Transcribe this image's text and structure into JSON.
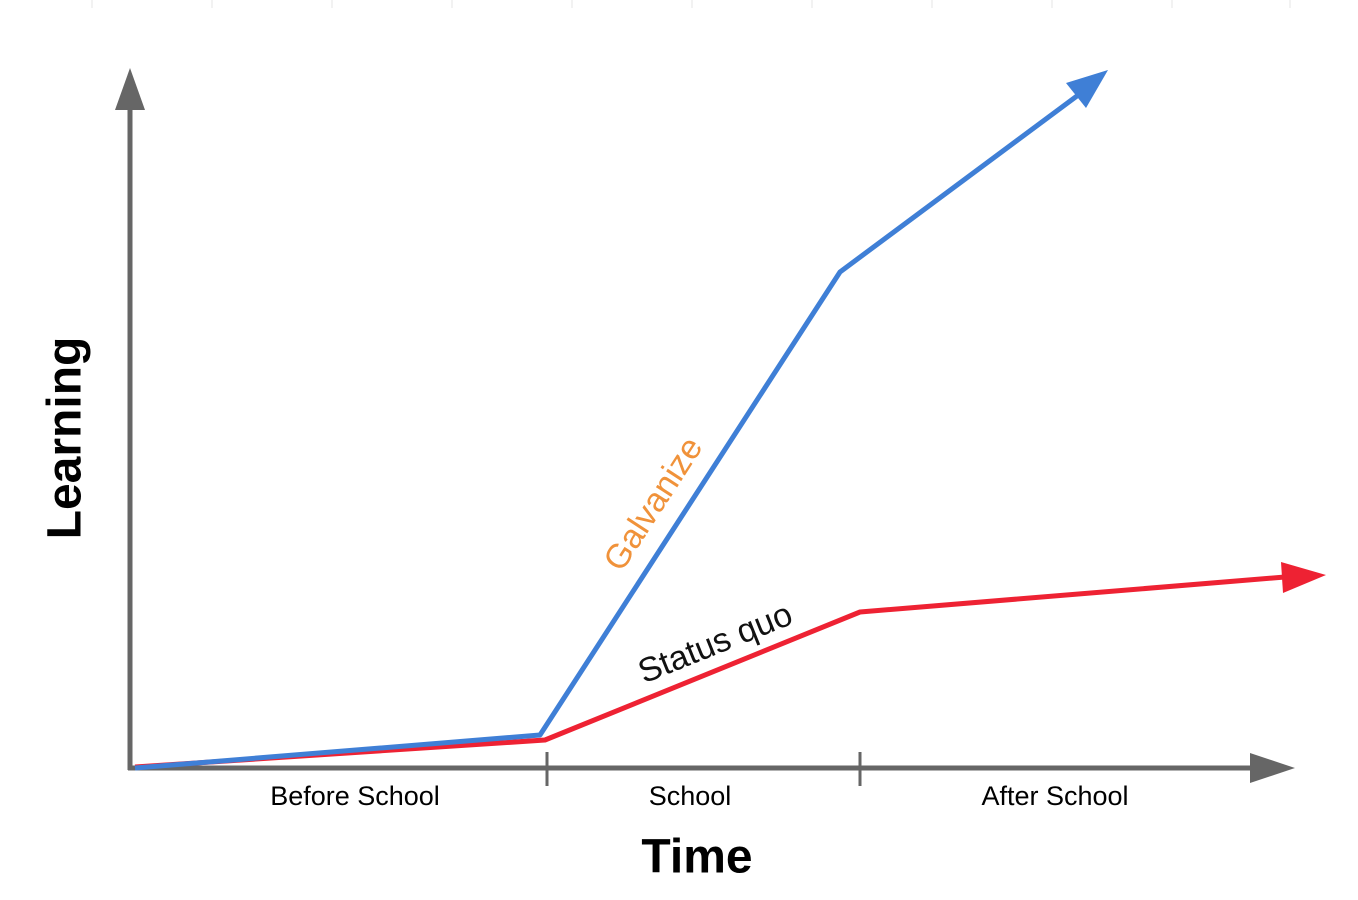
{
  "axes": {
    "y_label": "Learning",
    "x_label": "Time"
  },
  "phases": [
    "Before School",
    "School",
    "After School"
  ],
  "lines": [
    {
      "label": "Galvanize"
    },
    {
      "label": "Status quo"
    }
  ]
}
